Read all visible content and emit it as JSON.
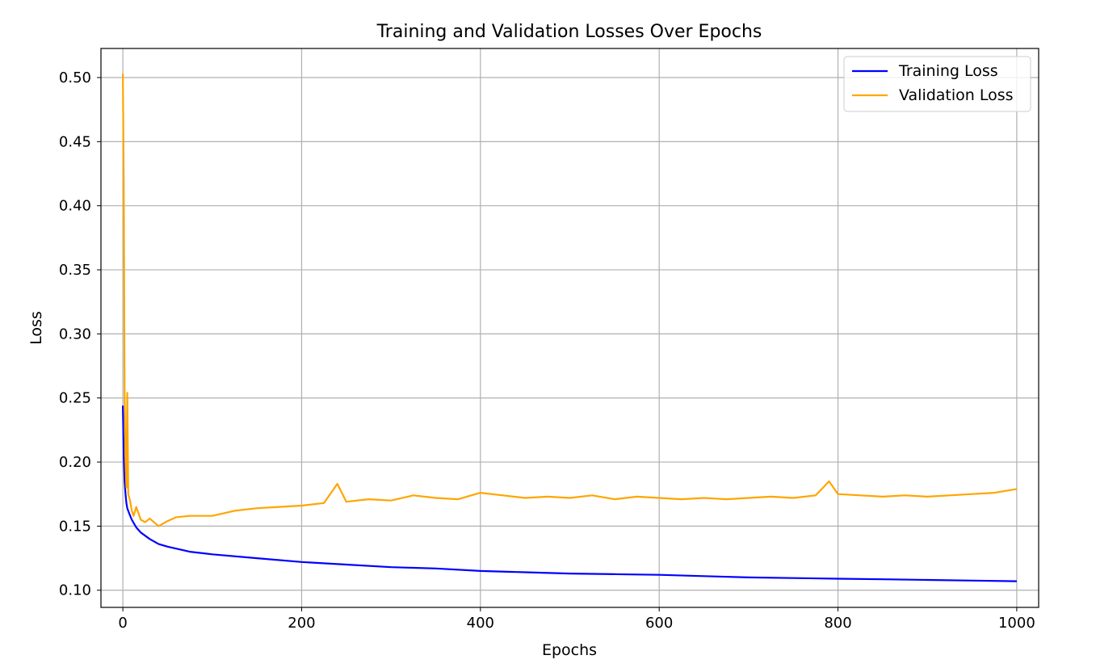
{
  "chart_data": {
    "type": "line",
    "title": "Training and Validation Losses Over Epochs",
    "xlabel": "Epochs",
    "ylabel": "Loss",
    "xlim": [
      -24.5,
      1024.5
    ],
    "ylim": [
      0.0866,
      0.5227
    ],
    "x_ticks": [
      0,
      200,
      400,
      600,
      800,
      1000
    ],
    "x_tick_labels": [
      "0",
      "200",
      "400",
      "600",
      "800",
      "1000"
    ],
    "y_ticks": [
      0.1,
      0.15,
      0.2,
      0.25,
      0.3,
      0.35,
      0.4,
      0.45,
      0.5
    ],
    "y_tick_labels": [
      "0.10",
      "0.15",
      "0.20",
      "0.25",
      "0.30",
      "0.35",
      "0.40",
      "0.45",
      "0.50"
    ],
    "grid": true,
    "legend_position": "upper right",
    "series": [
      {
        "name": "Training Loss",
        "color": "#0000ff",
        "x": [
          0,
          1,
          2,
          3,
          4,
          5,
          7,
          10,
          15,
          20,
          30,
          40,
          50,
          75,
          100,
          150,
          200,
          250,
          300,
          350,
          400,
          450,
          500,
          550,
          600,
          650,
          700,
          750,
          800,
          850,
          900,
          950,
          1000
        ],
        "y": [
          0.244,
          0.205,
          0.185,
          0.175,
          0.168,
          0.164,
          0.16,
          0.155,
          0.149,
          0.145,
          0.14,
          0.136,
          0.134,
          0.13,
          0.128,
          0.125,
          0.122,
          0.12,
          0.118,
          0.117,
          0.115,
          0.114,
          0.113,
          0.1125,
          0.112,
          0.111,
          0.11,
          0.1095,
          0.109,
          0.1085,
          0.108,
          0.1075,
          0.107
        ]
      },
      {
        "name": "Validation Loss",
        "color": "#ffa500",
        "x": [
          0,
          1,
          2,
          3,
          4,
          5,
          6,
          8,
          10,
          12,
          15,
          20,
          25,
          30,
          40,
          50,
          60,
          75,
          100,
          125,
          150,
          175,
          200,
          225,
          240,
          250,
          275,
          300,
          325,
          350,
          375,
          400,
          425,
          450,
          475,
          500,
          525,
          550,
          575,
          600,
          625,
          650,
          675,
          700,
          725,
          750,
          775,
          790,
          800,
          825,
          850,
          875,
          900,
          925,
          950,
          975,
          1000
        ],
        "y": [
          0.503,
          0.42,
          0.25,
          0.2,
          0.18,
          0.254,
          0.175,
          0.17,
          0.162,
          0.158,
          0.165,
          0.155,
          0.153,
          0.156,
          0.15,
          0.154,
          0.157,
          0.158,
          0.158,
          0.162,
          0.164,
          0.165,
          0.166,
          0.168,
          0.183,
          0.169,
          0.171,
          0.17,
          0.174,
          0.172,
          0.171,
          0.176,
          0.174,
          0.172,
          0.173,
          0.172,
          0.174,
          0.171,
          0.173,
          0.172,
          0.171,
          0.172,
          0.171,
          0.172,
          0.173,
          0.172,
          0.174,
          0.185,
          0.175,
          0.174,
          0.173,
          0.174,
          0.173,
          0.174,
          0.175,
          0.176,
          0.179
        ]
      }
    ]
  }
}
